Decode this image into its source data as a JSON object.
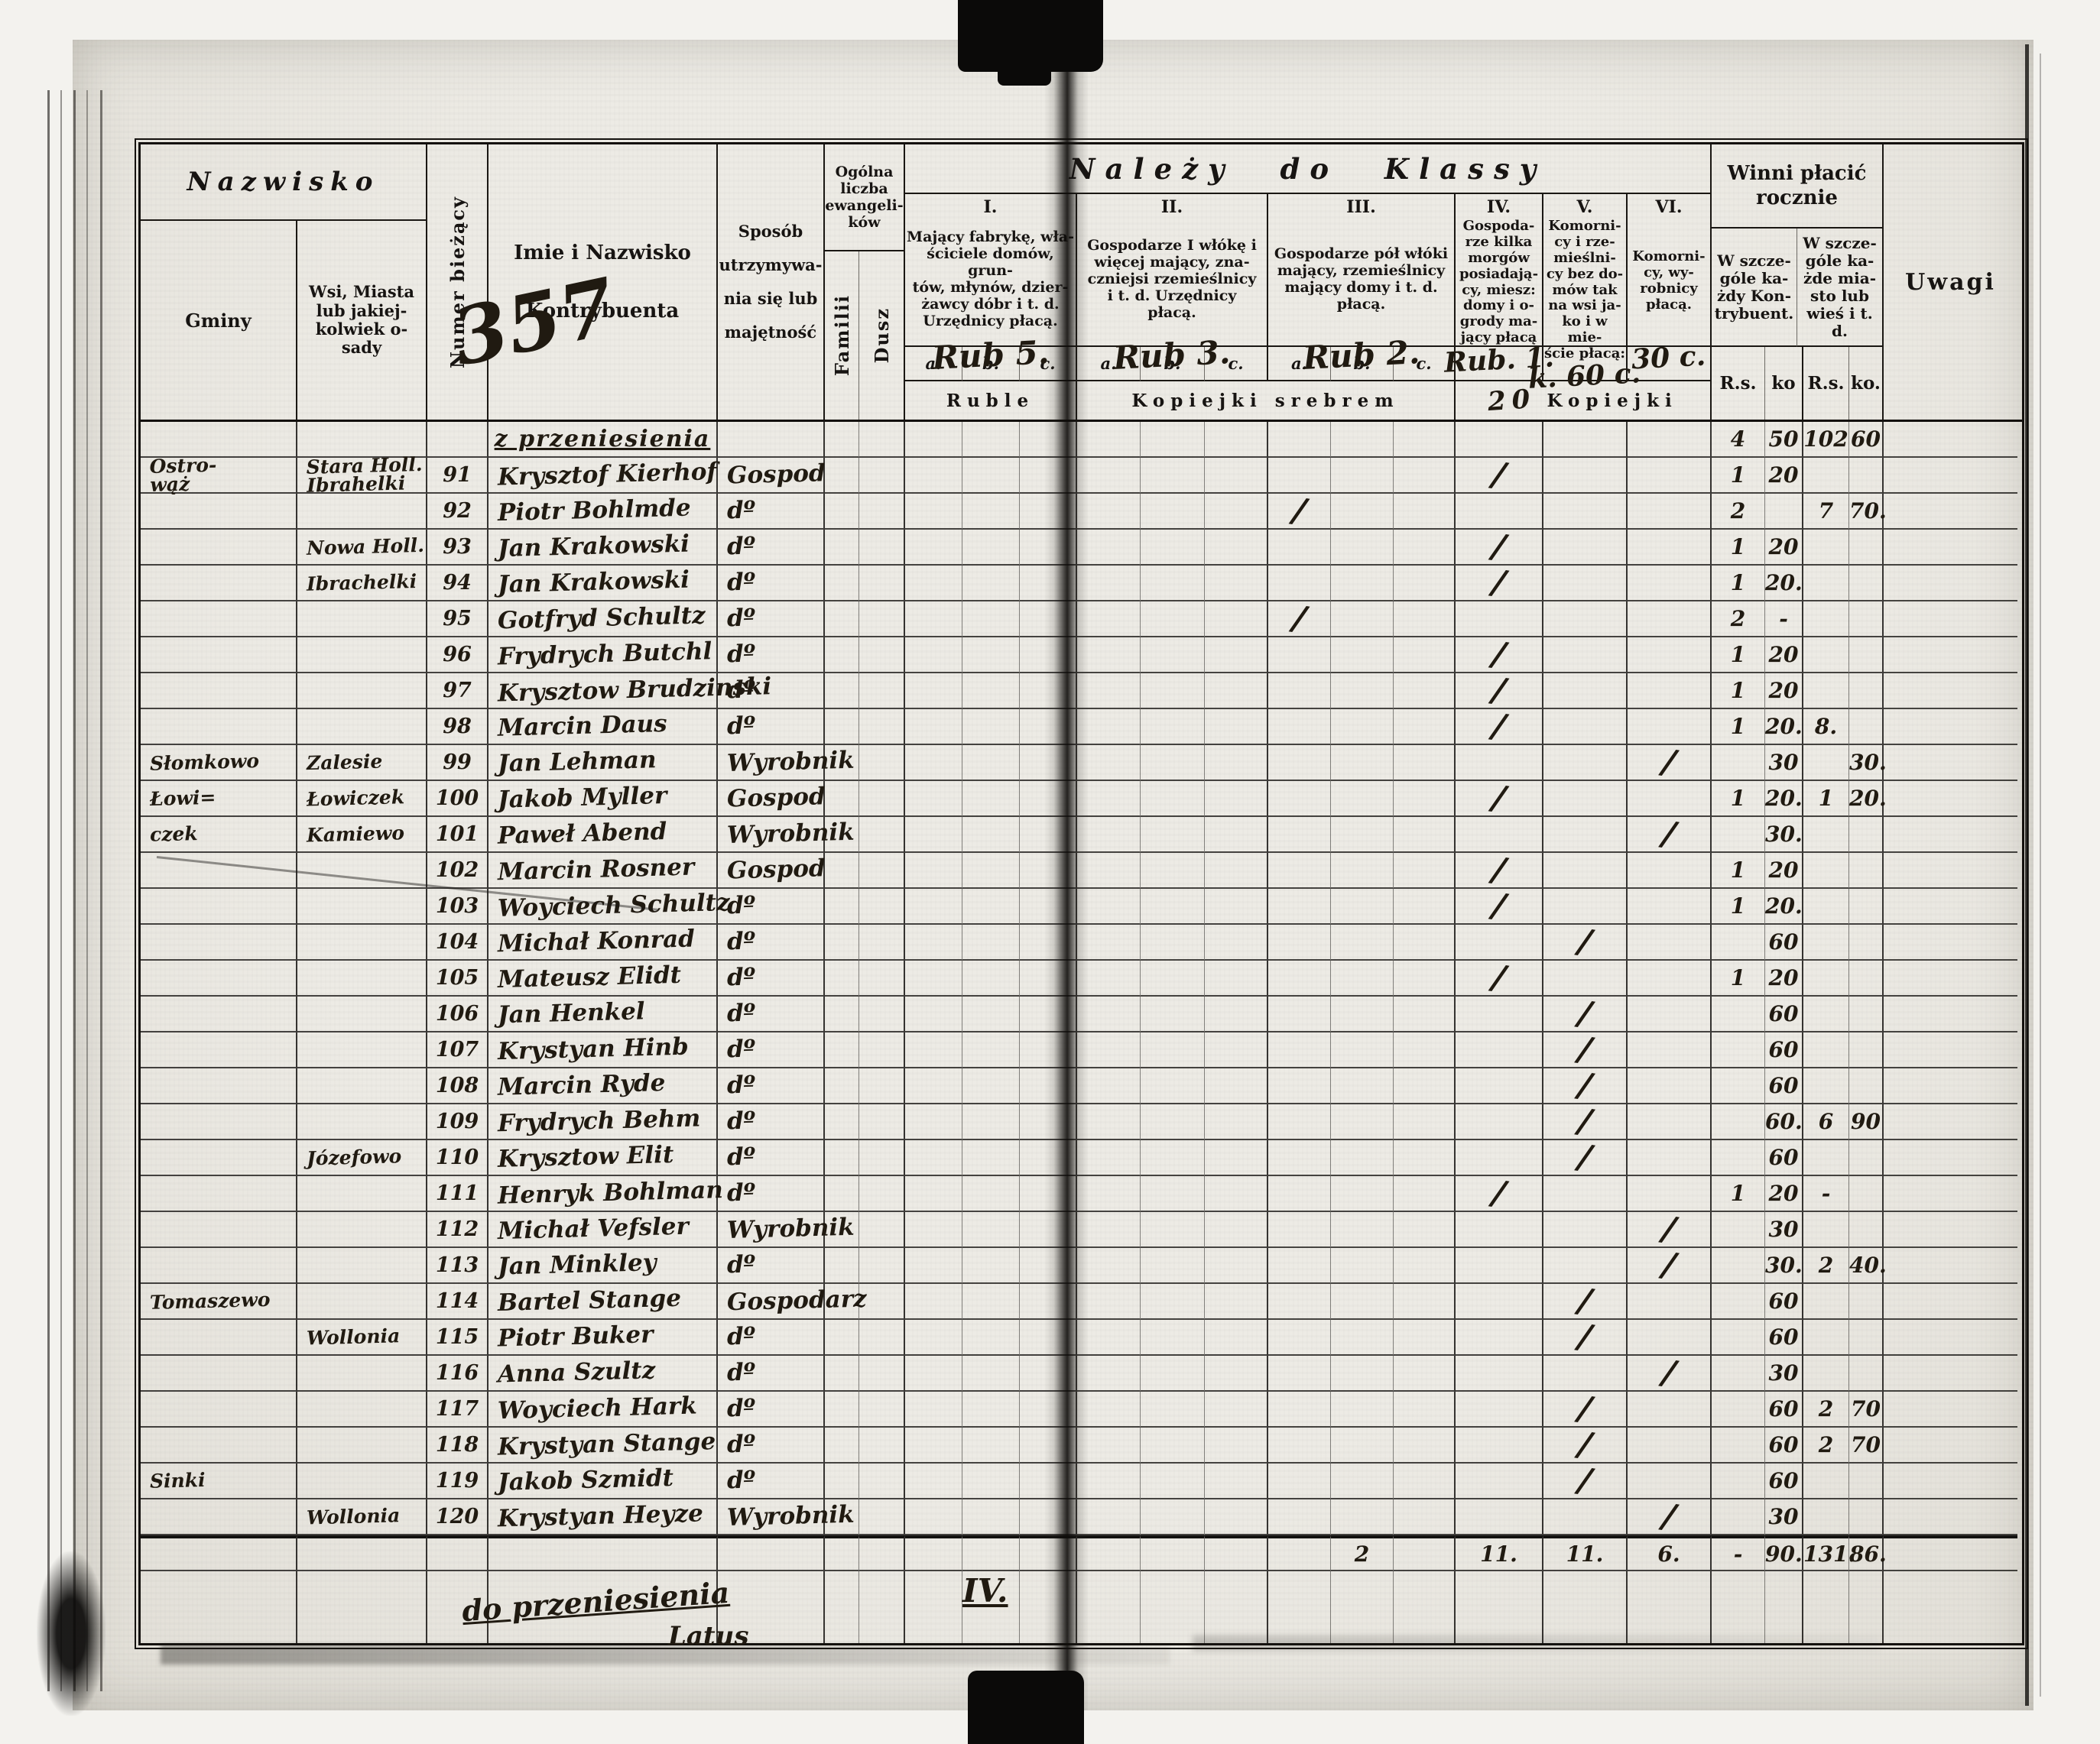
{
  "page": {
    "annotation": "357",
    "footer_carry": "do przeniesienia",
    "footer_class": "IV.",
    "footer_latus": "Latus"
  },
  "marks": {
    "tally": "/"
  },
  "header": {
    "nazwisko": "Nazwisko",
    "gminy": "Gminy",
    "wsi": "Wsi, Miasta\nlub jakiej-\nkolwiek o-\nsady",
    "numer": "Numer bieżący",
    "imie": "Imie i Nazwisko",
    "kontrybuenta": "Kontrybuenta",
    "sposob": "Sposób\nutrzymywa-\nnia się lub\nmajętność",
    "ogolna": "Ogólna\nliczba\newangeli-\nków",
    "familii": "Familii",
    "dusz": "Dusz",
    "klassy": "Należy do Klassy",
    "classes": [
      {
        "num": "I.",
        "desc": "Mający fabrykę, wła-\nściciele domów, grun-\ntów, młynów, dzier-\nżawcy dóbr i t. d.\nUrzędnicy płacą.",
        "hand": "Rub 5."
      },
      {
        "num": "II.",
        "desc": "Gospodarze I włókę i\nwięcej mający, zna-\nczniejsi rzemieślnicy\ni t. d. Urzędnicy\npłacą.",
        "hand": "Rub 3."
      },
      {
        "num": "III.",
        "desc": "Gospodarze pół włóki\nmający, rzemieślnicy\nmający domy i t. d.\npłacą.",
        "hand": "Rub 2."
      },
      {
        "num": "IV.",
        "desc": "Gospoda-\nrze kilka\nmorgów\nposiadają-\ncy, miesz:\ndomy i o-\ngrody ma-\njący płacą",
        "hand": "Rub. 1."
      },
      {
        "num": "V.",
        "desc": "Komorni-\ncy i rze-\nmieślni-\ncy bez do-\nmów tak\nna wsi ja-\nko i w mie-\nście płacą:",
        "hand": "k. 60 c."
      },
      {
        "num": "VI.",
        "desc": "Komorni-\ncy, wy-\nrobnicy\npłacą.",
        "hand": "30 c."
      }
    ],
    "abc": [
      "a.",
      "b.",
      "c."
    ],
    "ruble": "Ruble",
    "kop_srebrem": "Kopiejki srebrem",
    "kop20": "20",
    "kopiejki": "Kopiejki",
    "winni": "Winni płacić\nrocznie",
    "winni_sub1": "W szcze-\ngóle ka-\nżdy Kon-\ntrybuent.",
    "winni_sub2": "W szcze-\ngóle ka-\nżde mia-\nsto lub\nwieś i t. d.",
    "rs1": "R.s.",
    "ko1": "ko",
    "rs2": "R.s.",
    "ko2": "ko.",
    "uwagi": "Uwagi"
  },
  "rows": [
    {
      "cls": "carry",
      "name": "z przeniesienia",
      "rs1": "4",
      "ko1": "50",
      "rs2": "102",
      "ko2": "60"
    },
    {
      "nr": "91",
      "gmina": "Ostro-\nwąż",
      "wies": "Stara Holl.\nIbrahelki",
      "name": "Krysztof Kierhof",
      "occ": "Gospod",
      "mark": "IV",
      "rs1": "1",
      "ko1": "20"
    },
    {
      "nr": "92",
      "name": "Piotr Bohlmde",
      "occ": "dº",
      "mark": "IIIa",
      "rs1": "2",
      "rs2": "7",
      "ko2": "70."
    },
    {
      "nr": "93",
      "wies": "Nowa Holl.",
      "name": "Jan Krakowski",
      "occ": "dº",
      "mark": "IV",
      "rs1": "1",
      "ko1": "20"
    },
    {
      "nr": "94",
      "wies": "Ibrachelki",
      "name": "Jan Krakowski",
      "occ": "dº",
      "mark": "IV",
      "rs1": "1",
      "ko1": "20."
    },
    {
      "nr": "95",
      "name": "Gotfryd Schultz",
      "occ": "dº",
      "mark": "IIIa",
      "rs1": "2",
      "ko1": "-"
    },
    {
      "nr": "96",
      "name": "Frydrych Butchl",
      "occ": "dº",
      "mark": "IV",
      "rs1": "1",
      "ko1": "20"
    },
    {
      "nr": "97",
      "name": "Krysztow Brudzinski",
      "occ": "dº",
      "mark": "IV",
      "rs1": "1",
      "ko1": "20"
    },
    {
      "nr": "98",
      "name": "Marcin Daus",
      "occ": "dº",
      "mark": "IV",
      "rs1": "1",
      "ko1": "20.",
      "rs2": "8."
    },
    {
      "nr": "99",
      "gmina": "Słomkowo",
      "wies": "Zalesie",
      "name": "Jan Lehman",
      "occ": "Wyrobnik",
      "mark": "VI",
      "ko1": "30",
      "ko2": "30."
    },
    {
      "nr": "100",
      "gmina": "Łowi=",
      "wies": "Łowiczek",
      "name": "Jakob Myller",
      "occ": "Gospod",
      "mark": "IV",
      "rs1": "1",
      "ko1": "20.",
      "rs2": "1",
      "ko2": "20."
    },
    {
      "nr": "101",
      "gmina": "czek",
      "wies": "Kamiewo",
      "name": "Paweł Abend",
      "occ": "Wyrobnik",
      "mark": "VI",
      "ko1": "30."
    },
    {
      "nr": "102",
      "name": "Marcin Rosner",
      "occ": "Gospod",
      "mark": "IV",
      "rs1": "1",
      "ko1": "20"
    },
    {
      "nr": "103",
      "name": "Woyciech Schultz",
      "occ": "dº",
      "mark": "IV",
      "rs1": "1",
      "ko1": "20."
    },
    {
      "nr": "104",
      "name": "Michał Konrad",
      "occ": "dº",
      "mark": "V",
      "ko1": "60"
    },
    {
      "nr": "105",
      "name": "Mateusz Elidt",
      "occ": "dº",
      "mark": "IV",
      "rs1": "1",
      "ko1": "20"
    },
    {
      "nr": "106",
      "name": "Jan Henkel",
      "occ": "dº",
      "mark": "V",
      "ko1": "60"
    },
    {
      "nr": "107",
      "name": "Krystyan Hinb",
      "occ": "dº",
      "mark": "V",
      "ko1": "60"
    },
    {
      "nr": "108",
      "name": "Marcin Ryde",
      "occ": "dº",
      "mark": "V",
      "ko1": "60"
    },
    {
      "nr": "109",
      "name": "Frydrych Behm",
      "occ": "dº",
      "mark": "V",
      "ko1": "60.",
      "rs2": "6",
      "ko2": "90"
    },
    {
      "nr": "110",
      "wies": "Józefowo",
      "name": "Krysztow Elit",
      "occ": "dº",
      "mark": "V",
      "ko1": "60"
    },
    {
      "nr": "111",
      "name": "Henryk Bohlman",
      "occ": "dº",
      "mark": "IV",
      "rs1": "1",
      "ko1": "20",
      "rs2": "-"
    },
    {
      "nr": "112",
      "name": "Michał Vefsler",
      "occ": "Wyrobnik",
      "mark": "VI",
      "ko1": "30"
    },
    {
      "nr": "113",
      "name": "Jan Minkley",
      "occ": "dº",
      "mark": "VI",
      "ko1": "30.",
      "rs2": "2",
      "ko2": "40."
    },
    {
      "nr": "114",
      "gmina": "Tomaszewo",
      "name": "Bartel Stange",
      "occ": "Gospodarz",
      "mark": "V",
      "ko1": "60"
    },
    {
      "nr": "115",
      "wies": "Wollonia",
      "name": "Piotr Buker",
      "occ": "dº",
      "mark": "V",
      "ko1": "60"
    },
    {
      "nr": "116",
      "name": "Anna Szultz",
      "occ": "dº",
      "mark": "VI",
      "ko1": "30"
    },
    {
      "nr": "117",
      "name": "Woyciech Hark",
      "occ": "dº",
      "mark": "V",
      "ko1": "60",
      "rs2": "2",
      "ko2": "70"
    },
    {
      "nr": "118",
      "name": "Krystyan Stange",
      "occ": "dº",
      "mark": "V",
      "ko1": "60",
      "rs2": "2",
      "ko2": "70"
    },
    {
      "nr": "119",
      "gmina": "Sinki",
      "name": "Jakob Szmidt",
      "occ": "dº",
      "mark": "V",
      "ko1": "60"
    },
    {
      "nr": "120",
      "wies": "Wollonia",
      "name": "Krystyan Heyze",
      "occ": "Wyrobnik",
      "mark": "VI",
      "ko1": "30"
    },
    {
      "cls": "sum",
      "IIIb": "2",
      "IV": "11.",
      "V": "11.",
      "VI": "6.",
      "rs1": "-",
      "ko1": "90.",
      "rs2": "131.",
      "ko2": "86."
    },
    {
      "cls": "foot"
    },
    {
      "cls": "foot"
    }
  ]
}
